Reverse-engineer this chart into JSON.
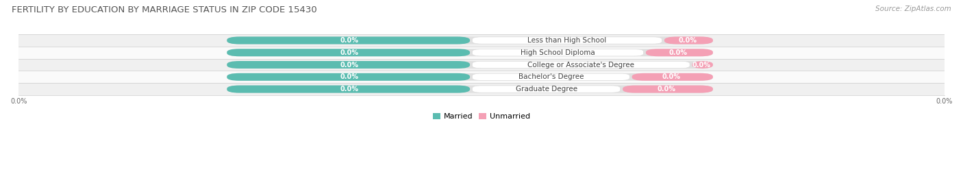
{
  "title": "FERTILITY BY EDUCATION BY MARRIAGE STATUS IN ZIP CODE 15430",
  "source": "Source: ZipAtlas.com",
  "categories": [
    "Less than High School",
    "High School Diploma",
    "College or Associate's Degree",
    "Bachelor's Degree",
    "Graduate Degree"
  ],
  "married_values": [
    0.0,
    0.0,
    0.0,
    0.0,
    0.0
  ],
  "unmarried_values": [
    0.0,
    0.0,
    0.0,
    0.0,
    0.0
  ],
  "married_color": "#5bbcb0",
  "unmarried_color": "#f4a0b5",
  "row_bg_odd": "#f0f0f0",
  "row_bg_even": "#fafafa",
  "bar_pill_bg": "#e0e0e0",
  "white_label_bg": "#ffffff",
  "axis_label": "0.0%",
  "figsize": [
    14.06,
    2.7
  ],
  "dpi": 100,
  "title_fontsize": 9.5,
  "source_fontsize": 7.5,
  "category_fontsize": 7.5,
  "value_fontsize": 7,
  "legend_fontsize": 8,
  "legend_married": "Married",
  "legend_unmarried": "Unmarried"
}
